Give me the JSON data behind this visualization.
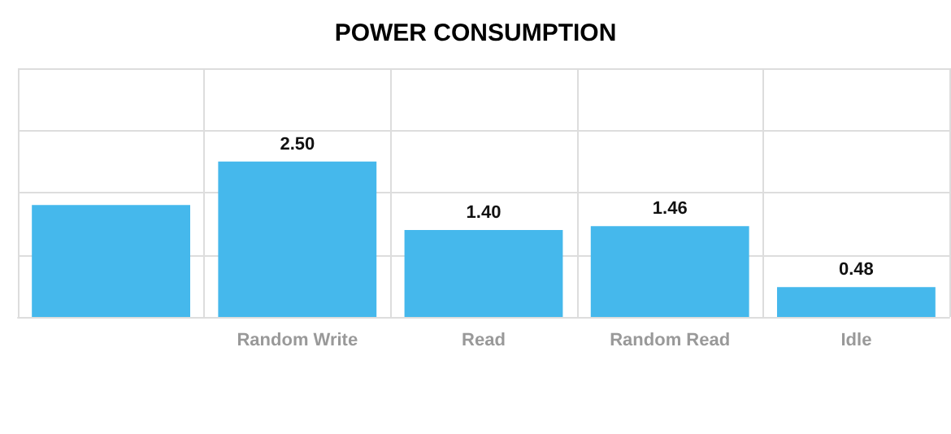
{
  "chart_data": {
    "type": "bar",
    "title": "POWER CONSUMPTION",
    "categories": [
      null,
      "Random Write",
      "Read",
      "Random Read",
      "Idle"
    ],
    "values": [
      1.8,
      2.5,
      1.4,
      1.46,
      0.48
    ],
    "color": "#45b8ec",
    "value_labels": [
      null,
      "2.50",
      "1.40",
      "1.46",
      "0.48"
    ],
    "ylim": [
      0,
      4
    ],
    "yticks": [
      {
        "value": 0,
        "label": null
      },
      {
        "value": 1,
        "label": null
      },
      {
        "value": 2,
        "label": null
      },
      {
        "value": 3,
        "label": null
      },
      {
        "value": 4,
        "label": null
      }
    ],
    "grid": true
  }
}
